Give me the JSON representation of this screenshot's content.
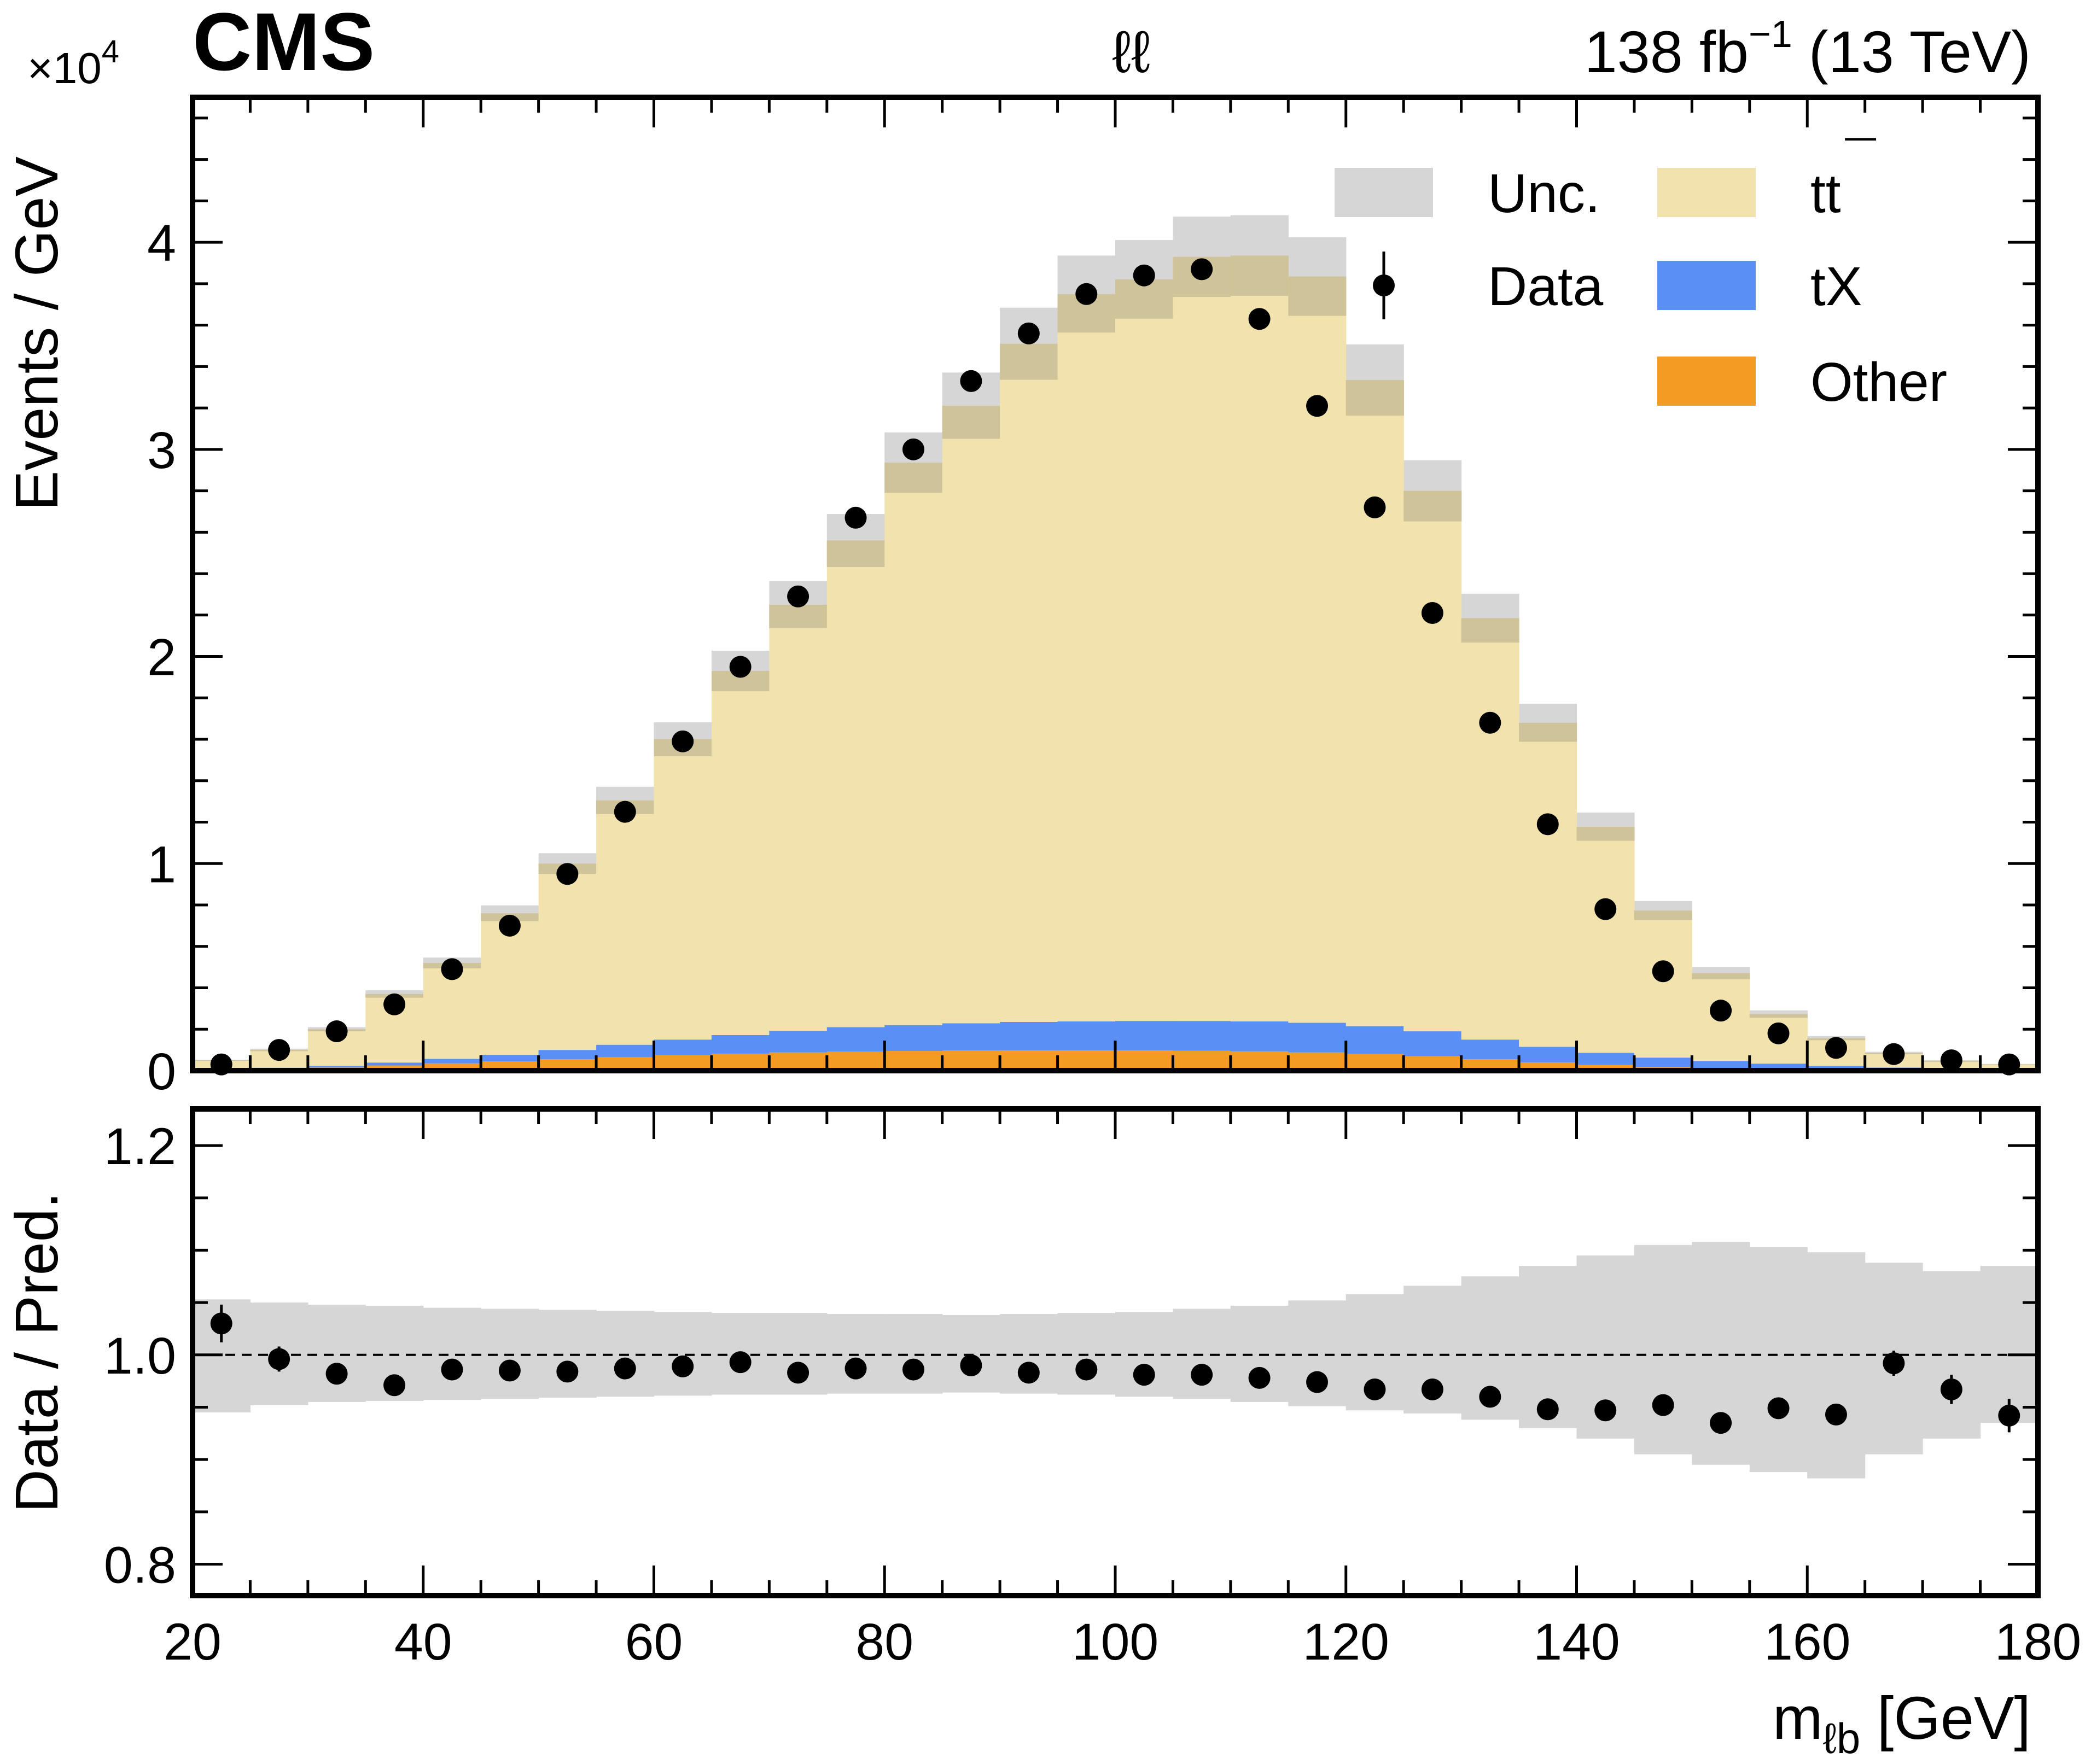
{
  "header": {
    "experiment": "CMS",
    "channel": "ℓℓ",
    "lumi_value": "138 fb",
    "lumi_exp": "−1",
    "energy": "(13 TeV)",
    "scale_prefix": "×10",
    "scale_exp": "4"
  },
  "colors": {
    "ttbar": "#f2e3ae",
    "tX": "#5a8ff5",
    "other": "#f39b22",
    "unc": "#d6d6d6",
    "data": "#000000"
  },
  "chart_data": [
    {
      "type": "bar",
      "stacked": true,
      "title": "",
      "xlabel": "m",
      "xlabel_sub": "ℓb",
      "xlabel_unit": " [GeV]",
      "ylabel": "Events / GeV",
      "ylabel_scale": "×10^4",
      "xlim": [
        20,
        180
      ],
      "ylim": [
        0,
        4.7
      ],
      "bin_width": 5,
      "bin_edges_start": 20,
      "x_ticks": [
        "20",
        "40",
        "60",
        "80",
        "100",
        "120",
        "140",
        "160",
        "180"
      ],
      "y_ticks": [
        "0",
        "1",
        "2",
        "3",
        "4"
      ],
      "legend_position": "top-right",
      "legend": [
        {
          "label": "Unc.",
          "kind": "unc"
        },
        {
          "label": "tt̄",
          "label_main": "tt",
          "label_bar": "¯",
          "kind": "ttbar"
        },
        {
          "label": "Data",
          "kind": "data"
        },
        {
          "label": "tX",
          "kind": "tX"
        },
        {
          "label": "Other",
          "kind": "other"
        }
      ],
      "series": [
        {
          "name": "Other",
          "values": [
            0.005,
            0.01,
            0.015,
            0.025,
            0.035,
            0.045,
            0.055,
            0.065,
            0.075,
            0.082,
            0.088,
            0.092,
            0.095,
            0.097,
            0.098,
            0.098,
            0.098,
            0.096,
            0.093,
            0.088,
            0.08,
            0.07,
            0.055,
            0.04,
            0.028,
            0.018,
            0.012,
            0.008,
            0.005,
            0.003,
            0.002,
            0.001
          ]
        },
        {
          "name": "tX",
          "values": [
            0.002,
            0.004,
            0.008,
            0.014,
            0.022,
            0.032,
            0.045,
            0.06,
            0.075,
            0.09,
            0.105,
            0.118,
            0.125,
            0.132,
            0.137,
            0.14,
            0.142,
            0.144,
            0.145,
            0.143,
            0.135,
            0.12,
            0.095,
            0.075,
            0.058,
            0.045,
            0.035,
            0.026,
            0.018,
            0.012,
            0.008,
            0.004
          ]
        },
        {
          "name": "tt̄",
          "values": [
            0.043,
            0.086,
            0.177,
            0.331,
            0.463,
            0.683,
            0.9,
            1.18,
            1.45,
            1.758,
            2.057,
            2.35,
            2.716,
            2.982,
            3.275,
            3.512,
            3.581,
            3.69,
            3.698,
            3.604,
            3.12,
            2.61,
            2.035,
            1.565,
            1.092,
            0.71,
            0.424,
            0.239,
            0.134,
            0.07,
            0.036,
            0.025
          ]
        }
      ],
      "unc_halfwidth": [
        0.003,
        0.006,
        0.01,
        0.018,
        0.026,
        0.038,
        0.05,
        0.066,
        0.082,
        0.098,
        0.114,
        0.128,
        0.146,
        0.16,
        0.174,
        0.186,
        0.19,
        0.194,
        0.195,
        0.19,
        0.172,
        0.148,
        0.118,
        0.092,
        0.068,
        0.046,
        0.03,
        0.018,
        0.01,
        0.006,
        0.004,
        0.002
      ],
      "data": {
        "values": [
          0.03,
          0.1,
          0.19,
          0.32,
          0.49,
          0.7,
          0.95,
          1.25,
          1.59,
          1.95,
          2.29,
          2.67,
          3.0,
          3.33,
          3.56,
          3.75,
          3.84,
          3.87,
          3.63,
          3.21,
          2.72,
          2.21,
          1.68,
          1.19,
          0.78,
          0.48,
          0.29,
          0.18,
          0.11,
          0.08,
          0.05,
          0.03
        ],
        "errors": [
          0.003,
          0.004,
          0.005,
          0.006,
          0.007,
          0.008,
          0.009,
          0.01,
          0.011,
          0.012,
          0.013,
          0.014,
          0.015,
          0.016,
          0.017,
          0.017,
          0.018,
          0.018,
          0.017,
          0.016,
          0.015,
          0.014,
          0.012,
          0.011,
          0.009,
          0.007,
          0.006,
          0.005,
          0.004,
          0.004,
          0.003,
          0.003
        ]
      }
    },
    {
      "type": "scatter",
      "title": "",
      "xlabel": "m_ℓb [GeV]",
      "ylabel": "Data / Pred.",
      "xlim": [
        20,
        180
      ],
      "ylim": [
        0.77,
        1.235
      ],
      "x_ticks": [
        "20",
        "40",
        "60",
        "80",
        "100",
        "120",
        "140",
        "160",
        "180"
      ],
      "y_ticks": [
        "0.8",
        "1.0",
        "1.2"
      ],
      "reference_line": 1.0,
      "bin_width": 5,
      "bin_edges_start": 20,
      "unc_band_low": [
        0.945,
        0.952,
        0.955,
        0.956,
        0.957,
        0.958,
        0.959,
        0.96,
        0.961,
        0.962,
        0.962,
        0.963,
        0.963,
        0.964,
        0.963,
        0.962,
        0.96,
        0.958,
        0.955,
        0.951,
        0.947,
        0.944,
        0.938,
        0.93,
        0.92,
        0.905,
        0.895,
        0.888,
        0.882,
        0.905,
        0.92,
        0.935
      ],
      "unc_band_high": [
        1.053,
        1.05,
        1.048,
        1.047,
        1.045,
        1.044,
        1.043,
        1.042,
        1.041,
        1.04,
        1.04,
        1.039,
        1.039,
        1.038,
        1.039,
        1.04,
        1.041,
        1.044,
        1.047,
        1.052,
        1.058,
        1.066,
        1.075,
        1.085,
        1.095,
        1.105,
        1.108,
        1.103,
        1.098,
        1.088,
        1.08,
        1.085
      ],
      "values": [
        1.03,
        0.996,
        0.982,
        0.971,
        0.986,
        0.985,
        0.984,
        0.987,
        0.989,
        0.993,
        0.983,
        0.987,
        0.986,
        0.99,
        0.983,
        0.986,
        0.981,
        0.981,
        0.978,
        0.974,
        0.967,
        0.967,
        0.96,
        0.948,
        0.947,
        0.952,
        0.935,
        0.949,
        0.943,
        0.992,
        0.967,
        0.942
      ],
      "errors": [
        0.018,
        0.012,
        0.006,
        0.005,
        0.004,
        0.003,
        0.003,
        0.003,
        0.003,
        0.003,
        0.003,
        0.003,
        0.003,
        0.003,
        0.003,
        0.003,
        0.003,
        0.003,
        0.003,
        0.003,
        0.004,
        0.004,
        0.004,
        0.005,
        0.006,
        0.007,
        0.007,
        0.008,
        0.01,
        0.012,
        0.014,
        0.016
      ]
    }
  ]
}
